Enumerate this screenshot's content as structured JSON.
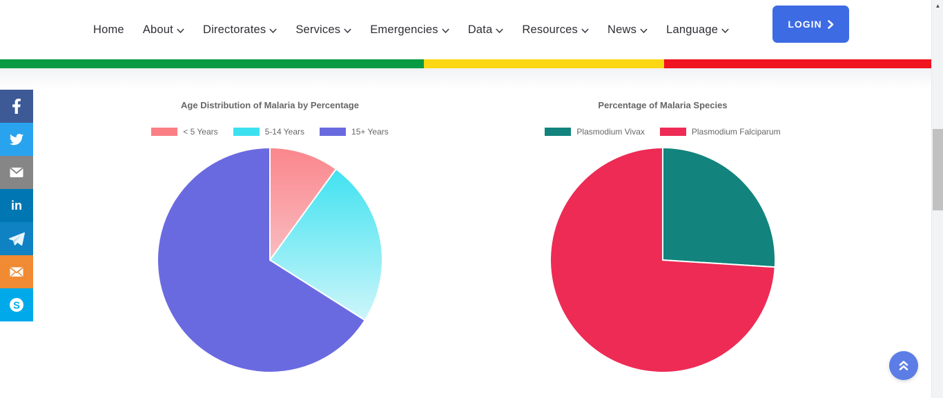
{
  "nav": {
    "items": [
      {
        "label": "Home",
        "dropdown": false
      },
      {
        "label": "About",
        "dropdown": true
      },
      {
        "label": "Directorates",
        "dropdown": true
      },
      {
        "label": "Services",
        "dropdown": true
      },
      {
        "label": "Emergencies",
        "dropdown": true
      },
      {
        "label": "Data",
        "dropdown": true
      },
      {
        "label": "Resources",
        "dropdown": true
      },
      {
        "label": "News",
        "dropdown": true
      },
      {
        "label": "Language",
        "dropdown": true
      }
    ],
    "login_label": "LOGIN"
  },
  "flag_stripe": {
    "green": "#089b44",
    "yellow": "#fbd813",
    "red": "#ef1420"
  },
  "social": {
    "items": [
      {
        "name": "facebook",
        "color": "#3d5a96"
      },
      {
        "name": "twitter",
        "color": "#2aa3ef"
      },
      {
        "name": "email",
        "color": "#868686"
      },
      {
        "name": "linkedin",
        "color": "#0077b3"
      },
      {
        "name": "telegram",
        "color": "#0e82c3"
      },
      {
        "name": "mail",
        "color": "#f08a33"
      },
      {
        "name": "skype",
        "color": "#00aaea"
      }
    ]
  },
  "chart_data": [
    {
      "type": "pie",
      "title": "Age Distribution of Malaria by Percentage",
      "labels": [
        "< 5 Years",
        "5-14 Years",
        "15+ Years"
      ],
      "values": [
        10,
        24,
        66
      ],
      "unit": "percent",
      "colors": [
        "#fa7f85",
        "#3ce1f0",
        "#6a6ae0"
      ],
      "gradients": [
        [
          "#fa868c",
          "#f9bdc1"
        ],
        [
          "#40e2f0",
          "#cdf6fa"
        ],
        null
      ],
      "legend_position": "top",
      "start_angle_deg": 0,
      "direction": "clockwise"
    },
    {
      "type": "pie",
      "title": "Percentage of Malaria Species",
      "labels": [
        "Plasmodium Vivax",
        "Plasmodium Falciparum"
      ],
      "values": [
        26,
        74
      ],
      "unit": "percent",
      "colors": [
        "#12837d",
        "#ed2b55"
      ],
      "gradients": [
        null,
        null
      ],
      "legend_position": "top",
      "start_angle_deg": 0,
      "direction": "clockwise"
    }
  ],
  "scroll_top": {
    "icon": "angles-up-icon"
  },
  "scrollbar": {
    "up_arrow": "▲"
  }
}
